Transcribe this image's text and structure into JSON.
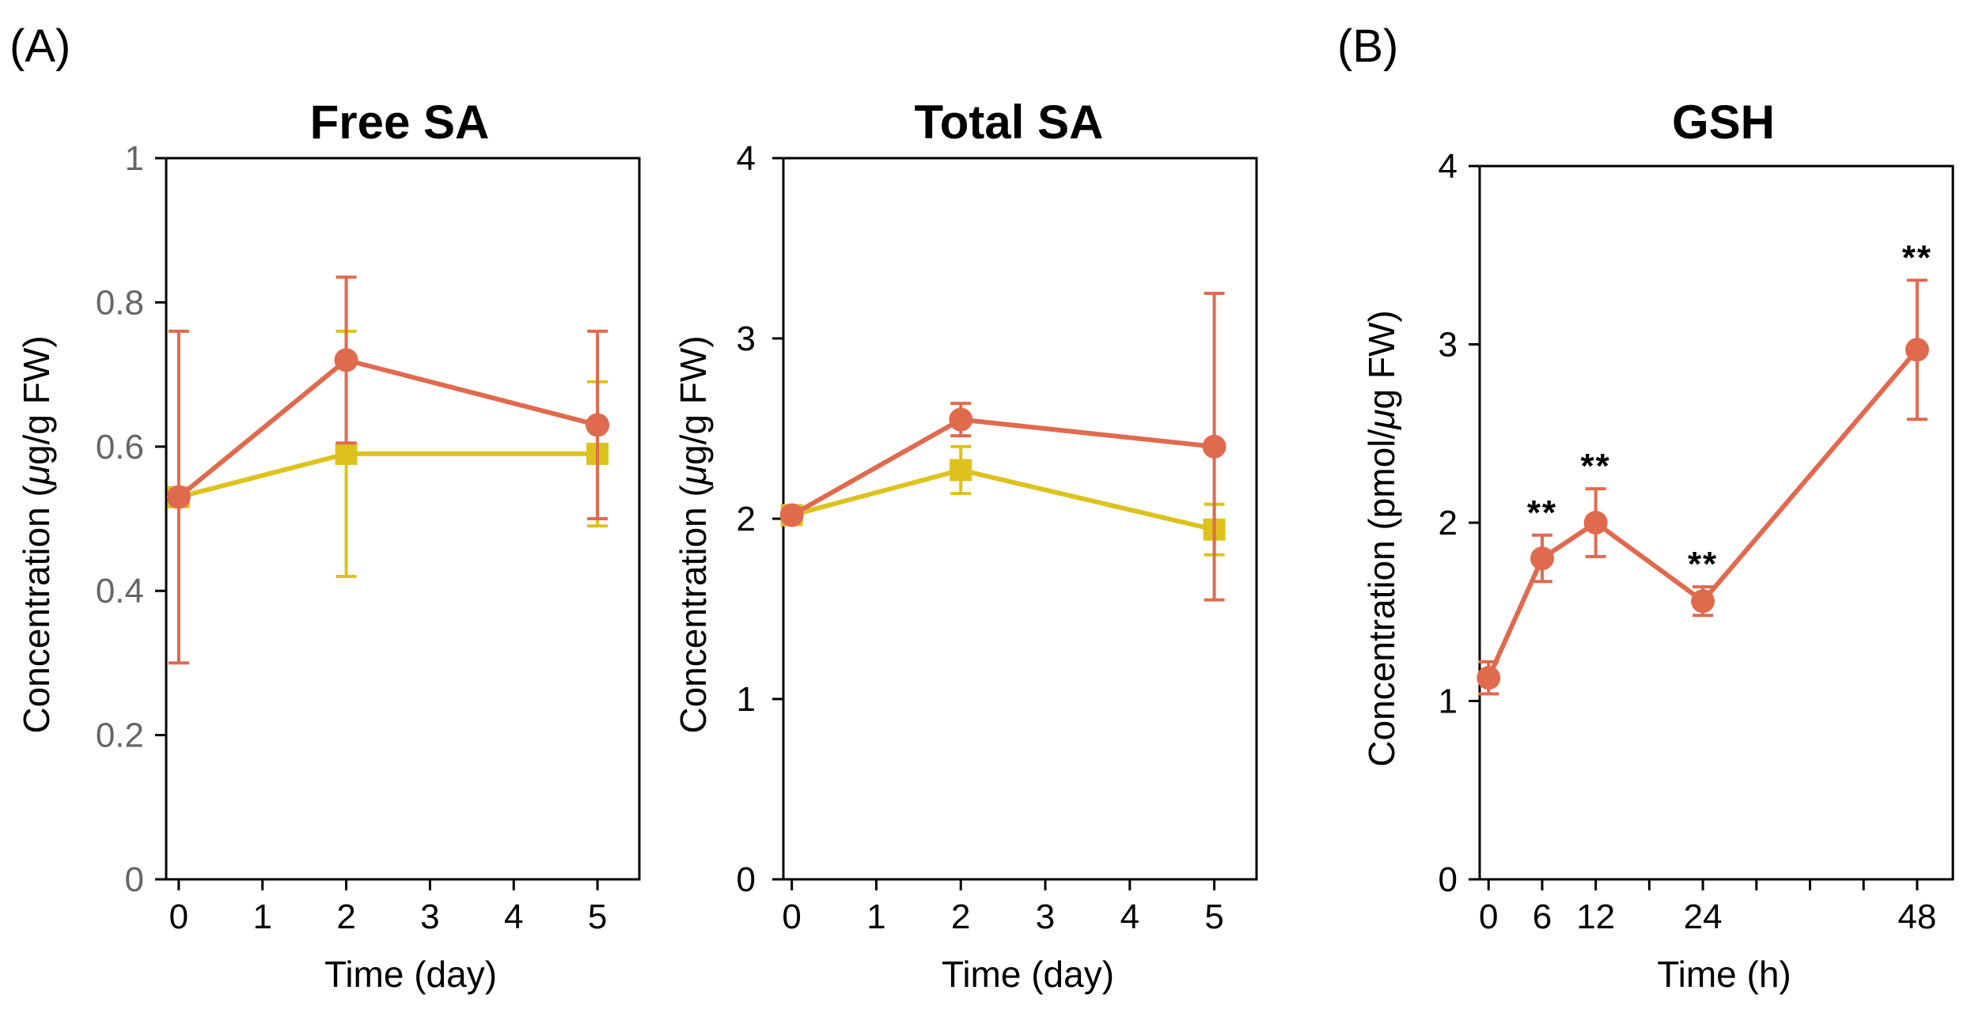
{
  "panel_labels": [
    "(A)",
    "(B)"
  ],
  "colors": {
    "red": "#E06A4E",
    "yellow": "#DDC21E",
    "axis": "#000000",
    "tick_gray": "#666666"
  },
  "chart_data": [
    {
      "type": "line",
      "title": "Free SA",
      "xlabel": "Time (day)",
      "ylabel_prefix": "Concentration (",
      "ylabel_mu": "μ",
      "ylabel_suffix": "g/g FW)",
      "xlim": [
        -0.15,
        5.5
      ],
      "ylim": [
        0,
        1
      ],
      "xticks": [
        0,
        1,
        2,
        3,
        4,
        5
      ],
      "yticks": [
        0,
        0.2,
        0.4,
        0.6,
        0.8,
        1
      ],
      "ytick_labels": [
        "0",
        "0.2",
        "0.4",
        "0.6",
        "0.8",
        "1"
      ],
      "ytick_color": "gray",
      "series": [
        {
          "name": "yellow",
          "marker": "square",
          "x": [
            0,
            2,
            5
          ],
          "y": [
            0.53,
            0.59,
            0.59
          ],
          "err": [
            0.0,
            0.17,
            0.1
          ]
        },
        {
          "name": "red",
          "marker": "circle",
          "x": [
            0,
            2,
            5
          ],
          "y": [
            0.53,
            0.72,
            0.63
          ],
          "err": [
            0.23,
            0.115,
            0.13
          ]
        }
      ]
    },
    {
      "type": "line",
      "title": "Total SA",
      "xlabel": "Time (day)",
      "ylabel_prefix": "Concentration (",
      "ylabel_mu": "μ",
      "ylabel_suffix": "g/g FW)",
      "xlim": [
        -0.1,
        5.5
      ],
      "ylim": [
        0,
        4
      ],
      "xticks": [
        0,
        1,
        2,
        3,
        4,
        5
      ],
      "yticks": [
        0,
        1,
        2,
        3,
        4
      ],
      "ytick_labels": [
        "0",
        "1",
        "2",
        "3",
        "4"
      ],
      "ytick_color": "black",
      "series": [
        {
          "name": "yellow",
          "marker": "square",
          "x": [
            0,
            2,
            5
          ],
          "y": [
            2.02,
            2.27,
            1.94
          ],
          "err": [
            0.0,
            0.13,
            0.14
          ]
        },
        {
          "name": "red",
          "marker": "circle",
          "x": [
            0,
            2,
            5
          ],
          "y": [
            2.02,
            2.55,
            2.4
          ],
          "err": [
            0.0,
            0.09,
            0.85
          ]
        }
      ]
    },
    {
      "type": "line",
      "title": "GSH",
      "xlabel": "Time (h)",
      "ylabel_prefix": "Concentration (pmol/",
      "ylabel_mu": "μ",
      "ylabel_suffix": "g FW)",
      "xlim": [
        -1,
        52
      ],
      "ylim": [
        0,
        4
      ],
      "xticks": [
        0,
        6,
        12,
        24,
        48
      ],
      "xtick_marks": [
        0,
        6,
        12,
        18,
        24,
        30,
        36,
        42,
        48
      ],
      "yticks": [
        0,
        1,
        2,
        3,
        4
      ],
      "ytick_labels": [
        "0",
        "1",
        "2",
        "3",
        "4"
      ],
      "ytick_color": "black",
      "series": [
        {
          "name": "red",
          "marker": "circle",
          "x": [
            0,
            6,
            12,
            24,
            48
          ],
          "y": [
            1.13,
            1.8,
            2.0,
            1.56,
            2.97
          ],
          "err": [
            0.09,
            0.13,
            0.19,
            0.08,
            0.39
          ]
        }
      ],
      "annotations": [
        {
          "text": "**",
          "x": 6,
          "y": 1.93
        },
        {
          "text": "**",
          "x": 12,
          "y": 2.19
        },
        {
          "text": "**",
          "x": 24,
          "y": 1.64
        },
        {
          "text": "**",
          "x": 48,
          "y": 3.36
        }
      ]
    }
  ]
}
